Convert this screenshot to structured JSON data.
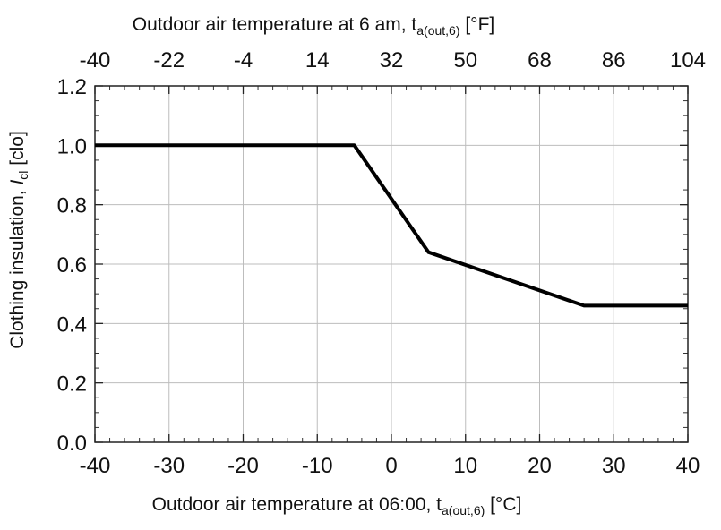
{
  "chart_data": {
    "type": "line",
    "title": "",
    "xlabel": {
      "main": "Outdoor air temperature at 06:00, t",
      "sub": "a(out,6)",
      "unit": " [°C]"
    },
    "x2label": {
      "main": "Outdoor air temperature at 6 am, t",
      "sub": "a(out,6)",
      "unit": " [°F]"
    },
    "ylabel": {
      "main": "Clothing insulation, ",
      "italic": "I",
      "sub": "cl",
      "unit": " [clo]"
    },
    "xlim": [
      -40,
      40
    ],
    "ylim": [
      0,
      1.2
    ],
    "x_ticks": [
      "-40",
      "-30",
      "-20",
      "-10",
      "0",
      "10",
      "20",
      "30",
      "40"
    ],
    "x2_ticks": [
      "-40",
      "-22",
      "-4",
      "14",
      "32",
      "50",
      "68",
      "86",
      "104"
    ],
    "y_ticks": [
      "0.0",
      "0.2",
      "0.4",
      "0.6",
      "0.8",
      "1.0",
      "1.2"
    ],
    "grid": true,
    "series": [
      {
        "x": [
          -40,
          -5,
          5,
          26,
          40
        ],
        "y": [
          1.0,
          1.0,
          0.64,
          0.46,
          0.46
        ]
      }
    ]
  }
}
